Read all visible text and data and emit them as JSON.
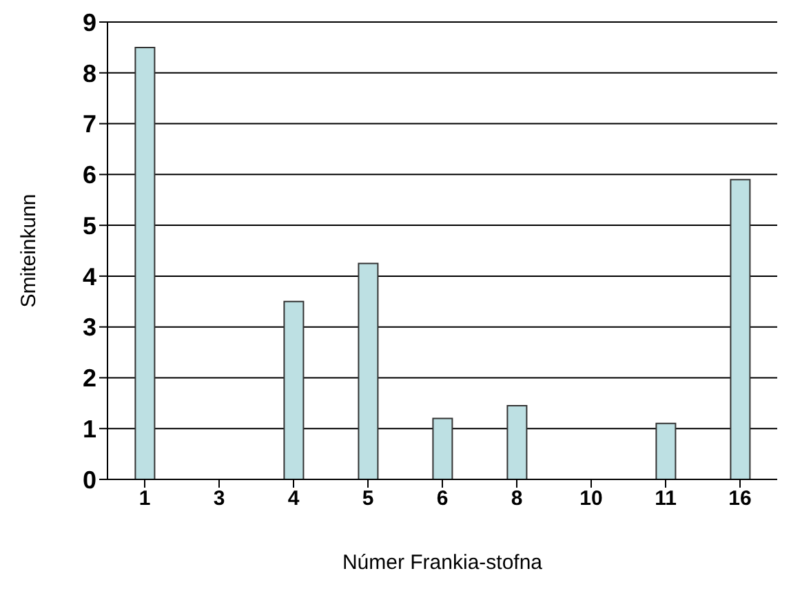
{
  "chart_data": {
    "type": "bar",
    "xlabel": "Númer Frankia-stofna",
    "ylabel": "Smiteinkunn",
    "categories": [
      "1",
      "3",
      "4",
      "5",
      "6",
      "8",
      "10",
      "11",
      "16"
    ],
    "values": [
      8.5,
      0,
      3.5,
      4.25,
      1.2,
      1.45,
      0,
      1.1,
      5.9
    ],
    "color": "#bde0e3",
    "ylim": [
      0,
      9
    ],
    "yticks": [
      0,
      1,
      2,
      3,
      4,
      5,
      6,
      7,
      8,
      9
    ],
    "grid": "y"
  }
}
